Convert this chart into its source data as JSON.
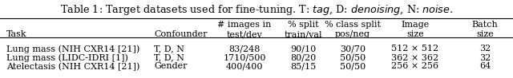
{
  "title_normal1": "Table 1: Target datasets used for fine-tuning. T: ",
  "title_italic1": "tag",
  "title_normal2": ", D: ",
  "title_italic2": "denoising",
  "title_normal3": ", N: ",
  "title_italic3": "noise",
  "title_normal4": ".",
  "col_headers_line1": [
    "",
    "",
    "# images in",
    "% split",
    "% class split",
    "Image",
    "Batch"
  ],
  "col_headers_line2": [
    "Task",
    "Confounder",
    "test/dev",
    "train/val",
    "pos/neg",
    "size",
    "size"
  ],
  "rows": [
    [
      "Lung mass (NIH CXR14 [21])",
      "T, D, N",
      "83/248",
      "90/10",
      "30/70",
      "512 × 512",
      "32"
    ],
    [
      "Lung mass (LIDC-IDRI [1])",
      "T, D, N",
      "1710/500",
      "80/20",
      "50/50",
      "362 × 362",
      "32"
    ],
    [
      "Atelectasis (NIH CXR14 [21])",
      "Gender",
      "400/400",
      "85/15",
      "50/50",
      "256 × 256",
      "64"
    ]
  ],
  "col_x_inches": [
    0.08,
    1.92,
    3.05,
    3.78,
    4.4,
    5.18,
    6.05
  ],
  "col_align": [
    "left",
    "left",
    "center",
    "center",
    "center",
    "center",
    "center"
  ],
  "background_color": "#ffffff",
  "font_size": 8.0,
  "title_font_size": 9.2,
  "fig_width": 6.4,
  "fig_height": 0.98
}
